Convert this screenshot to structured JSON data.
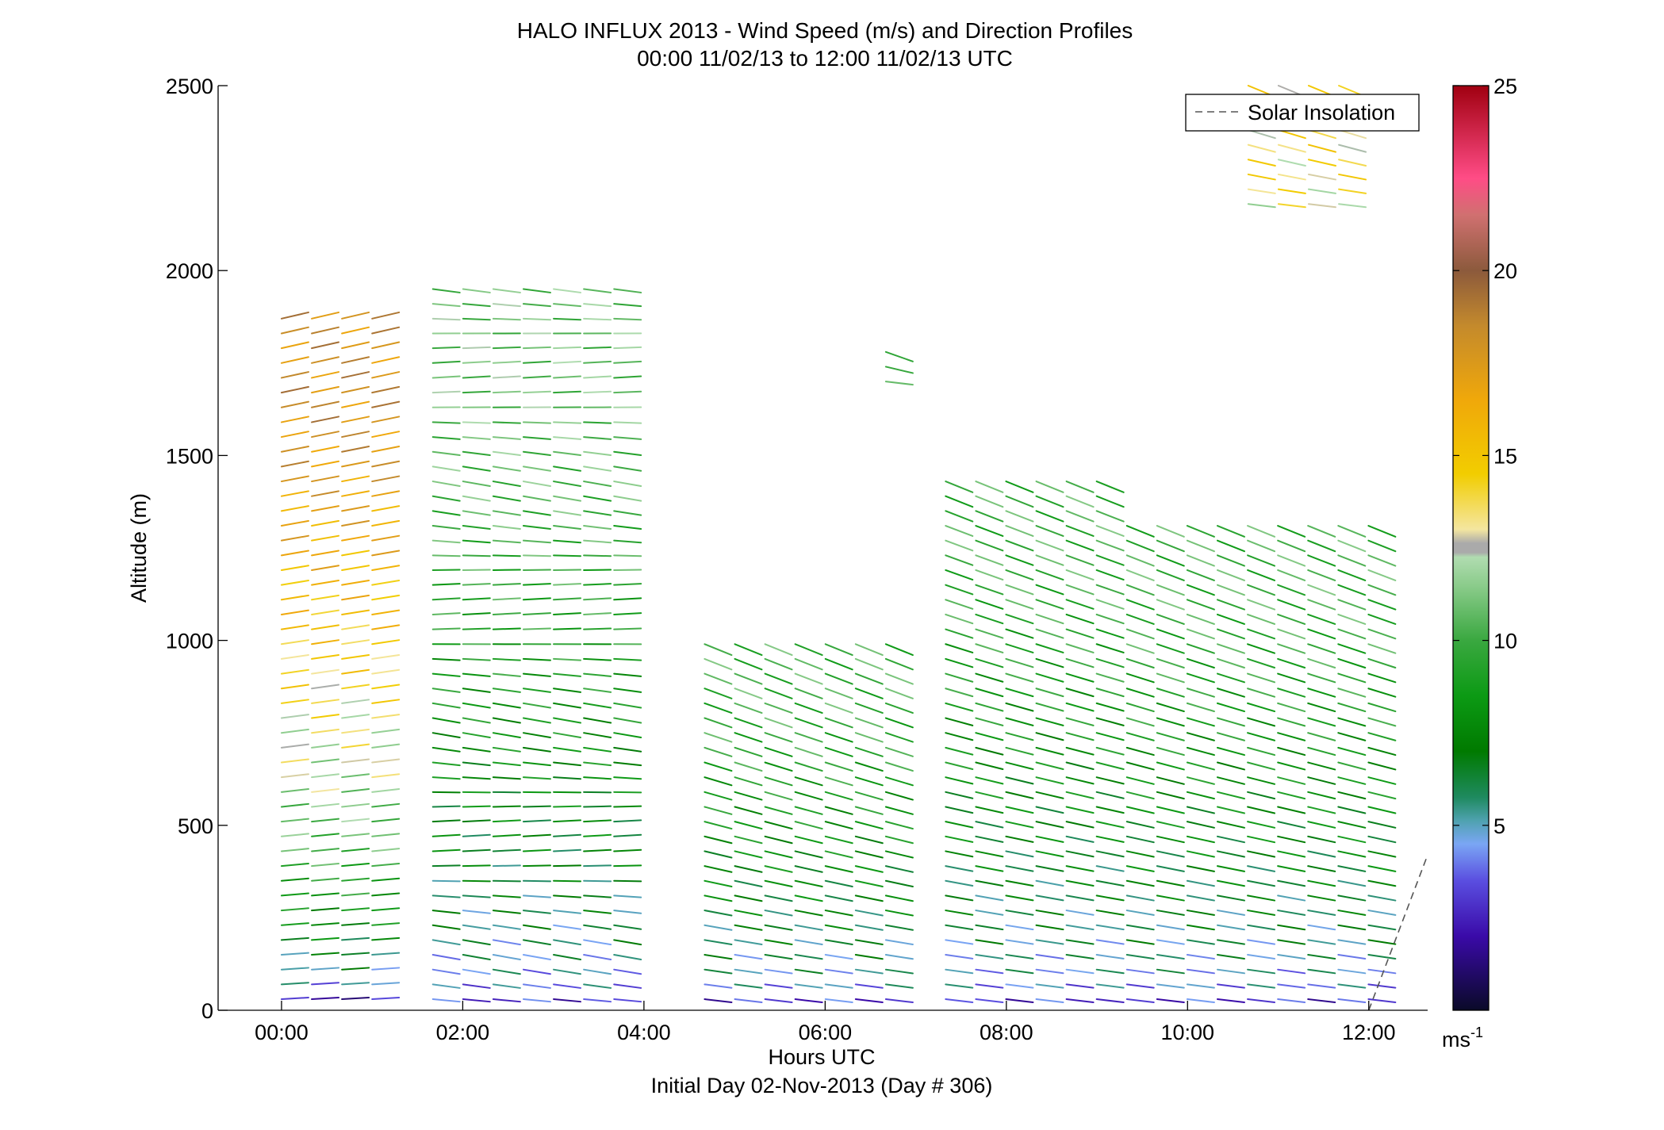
{
  "chart_data": {
    "type": "barb",
    "title": "HALO INFLUX 2013 - Wind Speed (m/s) and Direction Profiles",
    "subtitle": "00:00 11/02/13 to 12:00 11/02/13  UTC",
    "xlabel": "Hours UTC",
    "xlabel2": "Initial Day 02-Nov-2013 (Day # 306)",
    "ylabel": "Altitude (m)",
    "xlim": [
      -0.7,
      12.65
    ],
    "ylim": [
      0,
      2500
    ],
    "x_ticks": [
      0,
      2,
      4,
      6,
      8,
      10,
      12
    ],
    "x_tick_labels": [
      "00:00",
      "02:00",
      "04:00",
      "06:00",
      "08:00",
      "10:00",
      "12:00"
    ],
    "y_ticks": [
      0,
      500,
      1000,
      1500,
      2000,
      2500
    ],
    "y_tick_labels": [
      "0",
      "500",
      "1000",
      "1500",
      "2000",
      "2500"
    ],
    "legend": {
      "label": "Solar Insolation",
      "placement": "top-right"
    },
    "colorbar": {
      "min": 0,
      "max": 25,
      "ticks": [
        5,
        10,
        15,
        20,
        25
      ],
      "tick_labels": [
        "5",
        "10",
        "15",
        "20",
        "25"
      ],
      "unit": "ms",
      "unit_exp": "-1"
    },
    "solar_insolation": {
      "x": [
        12.0,
        12.65
      ],
      "y": [
        0,
        420
      ]
    },
    "time_groups": [
      {
        "start": 0.0,
        "end": 1.33,
        "zmin": 30,
        "zmax": 1900,
        "speed_low": 2,
        "speed_high": 18
      },
      {
        "start": 1.67,
        "end": 4.0,
        "zmin": 30,
        "zmax": 1980,
        "speed_low": 3,
        "speed_high": 11
      },
      {
        "start": 4.67,
        "end": 7.0,
        "zmin": 30,
        "zmax": 1010,
        "speed_low": 3,
        "speed_high": 10
      },
      {
        "start": 6.67,
        "end": 7.0,
        "zmin": 1700,
        "zmax": 1800,
        "speed_low": 10,
        "speed_high": 11
      },
      {
        "start": 7.33,
        "end": 9.0,
        "zmin": 30,
        "zmax": 1460,
        "speed_low": 3,
        "speed_high": 10
      },
      {
        "start": 9.33,
        "end": 12.0,
        "zmin": 30,
        "zmax": 1330,
        "speed_low": 3,
        "speed_high": 10
      },
      {
        "start": 10.67,
        "end": 12.0,
        "zmin": 2180,
        "zmax": 2500,
        "speed_low": 13,
        "speed_high": 14
      }
    ]
  }
}
